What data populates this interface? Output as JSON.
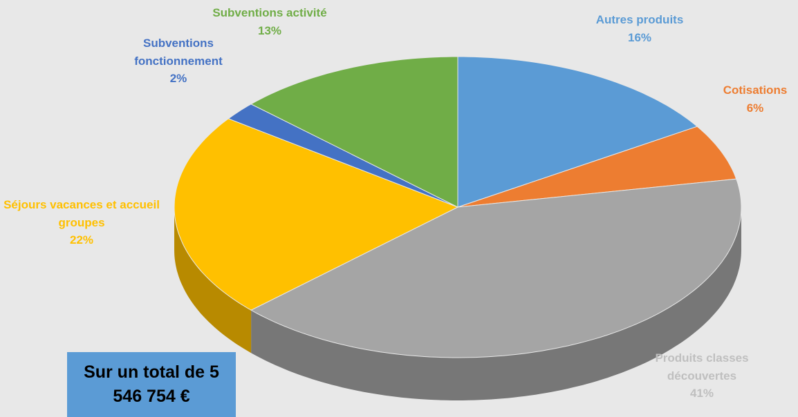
{
  "chart_data": {
    "type": "pie",
    "categories": [
      "Autres produits",
      "Cotisations",
      "Produits classes découvertes",
      "Séjours vacances et accueil groupes",
      "Subventions fonctionnement",
      "Subventions activité"
    ],
    "values": [
      16,
      6,
      41,
      22,
      2,
      13
    ],
    "value_labels": [
      "16%",
      "6%",
      "41%",
      "22%",
      "2%",
      "13%"
    ],
    "colors": [
      "#5b9bd5",
      "#ed7d31",
      "#a5a5a5",
      "#ffc000",
      "#4472c4",
      "#70ad47"
    ],
    "annotation": "Sur un total de 5 546 754 €"
  }
}
